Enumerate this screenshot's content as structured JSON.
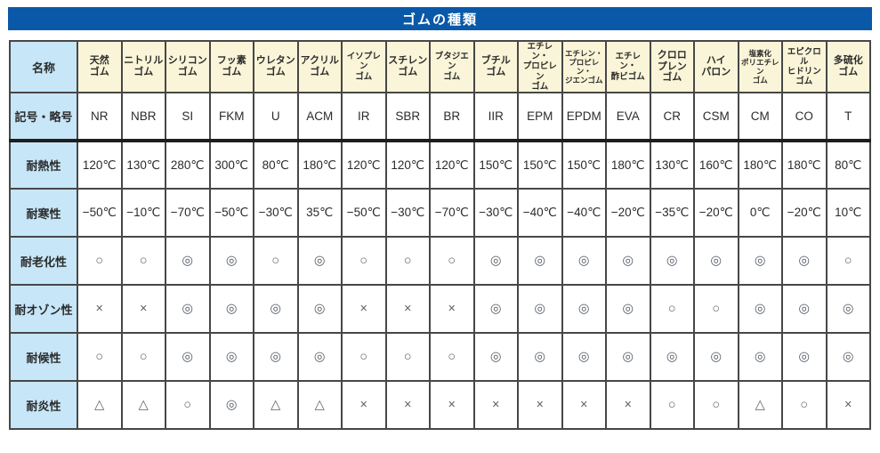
{
  "title": "ゴムの種類",
  "table": {
    "corner_label": "名称",
    "columns": [
      "天然\nゴム",
      "ニトリル\nゴム",
      "シリコン\nゴム",
      "フッ素\nゴム",
      "ウレタン\nゴム",
      "アクリル\nゴム",
      "イソプレン\nゴム",
      "スチレン\nゴム",
      "ブタジエン\nゴム",
      "ブチル\nゴム",
      "エチレン・\nプロピレン\nゴム",
      "エチレン・\nプロピレン・\nジエンゴム",
      "エチレン・\n酢ビゴム",
      "クロロ\nプレン\nゴム",
      "ハイ\nパロン",
      "塩素化\nポリエチレン\nゴム",
      "エピクロル\nヒドリン\nゴム",
      "多硫化\nゴム"
    ],
    "rows": [
      {
        "label": "記号・略号",
        "values": [
          "NR",
          "NBR",
          "SI",
          "FKM",
          "U",
          "ACM",
          "IR",
          "SBR",
          "BR",
          "IIR",
          "EPM",
          "EPDM",
          "EVA",
          "CR",
          "CSM",
          "CM",
          "CO",
          "T"
        ]
      },
      {
        "label": "耐熱性",
        "values": [
          "120℃",
          "130℃",
          "280℃",
          "300℃",
          "80℃",
          "180℃",
          "120℃",
          "120℃",
          "120℃",
          "150℃",
          "150℃",
          "150℃",
          "180℃",
          "130℃",
          "160℃",
          "180℃",
          "180℃",
          "80℃"
        ]
      },
      {
        "label": "耐寒性",
        "values": [
          "−50℃",
          "−10℃",
          "−70℃",
          "−50℃",
          "−30℃",
          "35℃",
          "−50℃",
          "−30℃",
          "−70℃",
          "−30℃",
          "−40℃",
          "−40℃",
          "−20℃",
          "−35℃",
          "−20℃",
          "0℃",
          "−20℃",
          "10℃"
        ]
      },
      {
        "label": "耐老化性",
        "values": [
          "○",
          "○",
          "◎",
          "◎",
          "○",
          "◎",
          "○",
          "○",
          "○",
          "◎",
          "◎",
          "◎",
          "◎",
          "◎",
          "◎",
          "◎",
          "◎",
          "○"
        ]
      },
      {
        "label": "耐オゾン性",
        "values": [
          "×",
          "×",
          "◎",
          "◎",
          "◎",
          "◎",
          "×",
          "×",
          "×",
          "◎",
          "◎",
          "◎",
          "◎",
          "○",
          "○",
          "◎",
          "◎",
          "◎"
        ]
      },
      {
        "label": "耐候性",
        "values": [
          "○",
          "○",
          "◎",
          "◎",
          "◎",
          "◎",
          "○",
          "○",
          "○",
          "◎",
          "◎",
          "◎",
          "◎",
          "◎",
          "◎",
          "◎",
          "◎",
          "◎"
        ]
      },
      {
        "label": "耐炎性",
        "values": [
          "△",
          "△",
          "○",
          "◎",
          "△",
          "△",
          "×",
          "×",
          "×",
          "×",
          "×",
          "×",
          "×",
          "○",
          "○",
          "△",
          "○",
          "×"
        ]
      }
    ]
  },
  "colors": {
    "title_bar": "#0a58a8",
    "column_header_bg": "#faf5d8",
    "row_header_bg": "#c7e6f7",
    "border": "#474747",
    "thick_divider": "#1e1e1e"
  }
}
